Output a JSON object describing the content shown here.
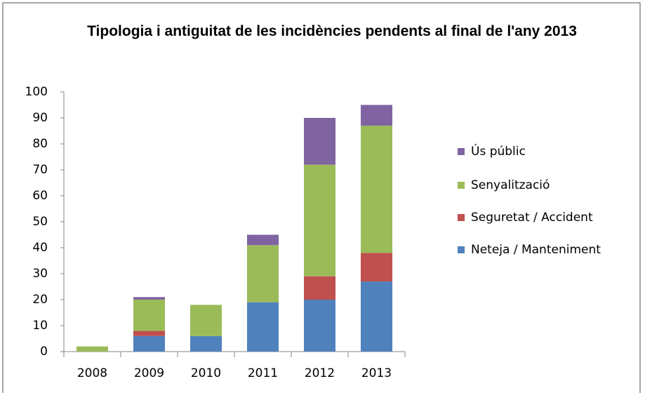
{
  "chart_data": {
    "type": "stacked_bar",
    "title": "Tipologia i antiguitat de les incidències pendents al final de l'any 2013",
    "categories": [
      "2008",
      "2009",
      "2010",
      "2011",
      "2012",
      "2013"
    ],
    "series": [
      {
        "name": "Neteja / Manteniment",
        "color": "#4f81bd",
        "values": [
          0,
          6,
          6,
          19,
          20,
          27
        ]
      },
      {
        "name": "Seguretat / Accident",
        "color": "#c0504d",
        "values": [
          0,
          2,
          0,
          0,
          9,
          11
        ]
      },
      {
        "name": "Senyalització",
        "color": "#9bbb59",
        "values": [
          2,
          12,
          12,
          22,
          43,
          49
        ]
      },
      {
        "name": "Ús públic",
        "color": "#8064a2",
        "values": [
          0,
          1,
          0,
          4,
          18,
          8
        ]
      }
    ],
    "ylim": [
      0,
      100
    ],
    "yticks": [
      0,
      10,
      20,
      30,
      40,
      50,
      60,
      70,
      80,
      90,
      100
    ],
    "grid": false,
    "legend": "right"
  }
}
